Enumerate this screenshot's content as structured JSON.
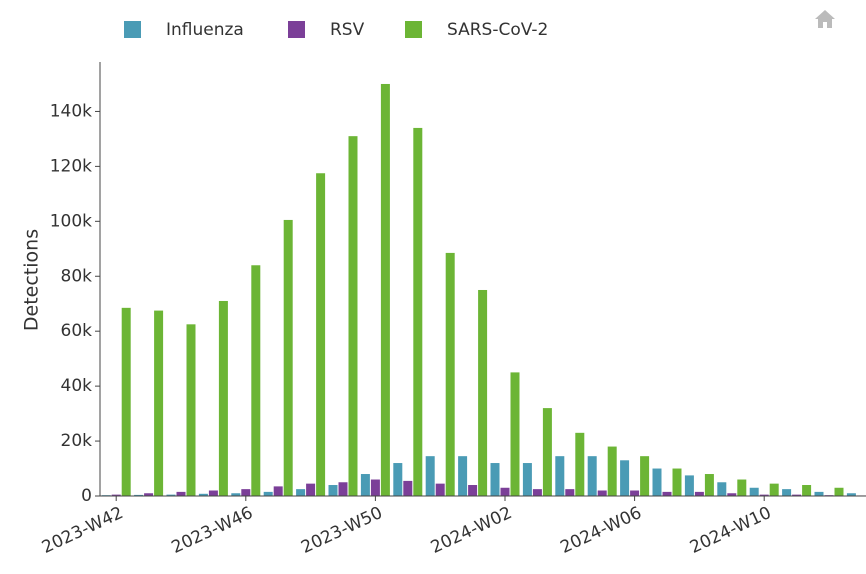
{
  "chart_data": {
    "type": "bar",
    "y_label": "Detections",
    "categories": [
      "2023-W42",
      null,
      null,
      null,
      "2023-W46",
      null,
      null,
      null,
      "2023-W50",
      null,
      null,
      null,
      "2024-W02",
      null,
      null,
      null,
      "2024-W06",
      null,
      null,
      null,
      "2024-W10",
      null,
      null,
      null
    ],
    "series": [
      {
        "name": "Influenza",
        "color": "#4a9bb5",
        "values": [
          300,
          400,
          500,
          800,
          1000,
          1500,
          2500,
          4000,
          8000,
          12000,
          14500,
          14500,
          12000,
          12000,
          14500,
          14500,
          13000,
          10000,
          7500,
          5000,
          3000,
          2500,
          1500,
          1000
        ]
      },
      {
        "name": "RSV",
        "color": "#7b3f98",
        "values": [
          500,
          1000,
          1500,
          2000,
          2500,
          3500,
          4500,
          5000,
          6000,
          5500,
          4500,
          4000,
          3000,
          2500,
          2500,
          2000,
          2000,
          1500,
          1500,
          1000,
          500,
          500,
          300,
          200
        ]
      },
      {
        "name": "SARS-CoV-2",
        "color": "#6cb535",
        "values": [
          68500,
          67500,
          62500,
          71000,
          84000,
          100500,
          117500,
          131000,
          150000,
          134000,
          88500,
          75000,
          45000,
          32000,
          23000,
          18000,
          14500,
          10000,
          8000,
          6000,
          4500,
          4000,
          3000,
          2500
        ]
      }
    ],
    "ylim": [
      0,
      158000
    ],
    "yticks": [
      0,
      {
        "value": 20000,
        "label": "20k"
      },
      {
        "value": 40000,
        "label": "40k"
      },
      {
        "value": 60000,
        "label": "60k"
      },
      {
        "value": 80000,
        "label": "80k"
      },
      {
        "value": 100000,
        "label": "100k"
      },
      {
        "value": 120000,
        "label": "120k"
      },
      {
        "value": 140000,
        "label": "140k"
      }
    ]
  }
}
